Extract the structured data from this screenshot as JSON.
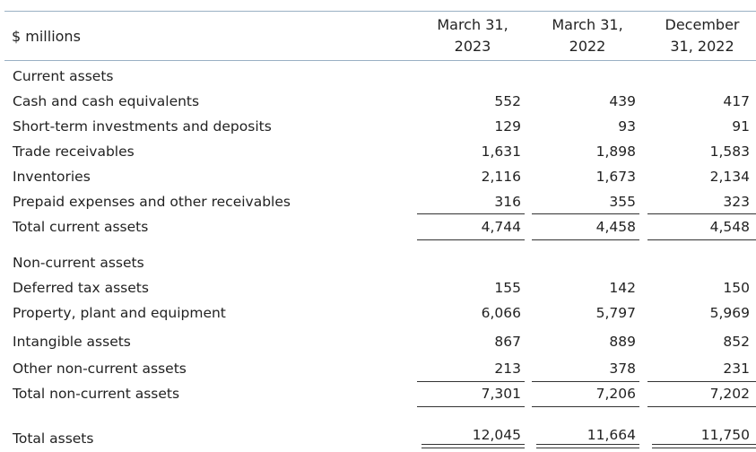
{
  "header": {
    "unit_label": "$ millions",
    "columns": [
      {
        "line1": "March 31,",
        "line2": "2023"
      },
      {
        "line1": "March 31,",
        "line2": "2022"
      },
      {
        "line1": "December",
        "line2": "31, 2022"
      }
    ]
  },
  "current": {
    "heading": "Current assets",
    "rows": [
      {
        "label": "Cash and cash equivalents",
        "values": [
          "552",
          "439",
          "417"
        ]
      },
      {
        "label": "Short-term investments and deposits",
        "values": [
          "129",
          "93",
          "91"
        ]
      },
      {
        "label": "Trade receivables",
        "values": [
          "1,631",
          "1,898",
          "1,583"
        ]
      },
      {
        "label": "Inventories",
        "values": [
          "2,116",
          "1,673",
          "2,134"
        ]
      },
      {
        "label": "Prepaid expenses and other receivables",
        "values": [
          "316",
          "355",
          "323"
        ]
      }
    ],
    "total": {
      "label": "Total current assets",
      "values": [
        "4,744",
        "4,458",
        "4,548"
      ]
    }
  },
  "noncurrent": {
    "heading": "Non-current assets",
    "rows": [
      {
        "label": "Deferred tax assets",
        "values": [
          "155",
          "142",
          "150"
        ]
      },
      {
        "label": "Property, plant and equipment",
        "values": [
          "6,066",
          "5,797",
          "5,969"
        ]
      },
      {
        "label": "Intangible assets",
        "values": [
          "867",
          "889",
          "852"
        ]
      },
      {
        "label": "Other non-current assets",
        "values": [
          "213",
          "378",
          "231"
        ]
      }
    ],
    "total": {
      "label": "Total non-current assets",
      "values": [
        "7,301",
        "7,206",
        "7,202"
      ]
    }
  },
  "grand_total": {
    "label": "Total assets",
    "values": [
      "12,045",
      "11,664",
      "11,750"
    ]
  }
}
